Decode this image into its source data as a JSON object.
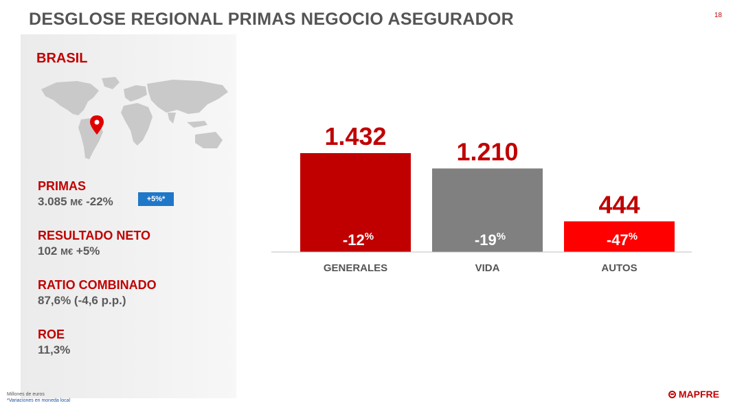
{
  "title": "DESGLOSE REGIONAL PRIMAS NEGOCIO ASEGURADOR",
  "page_number": "18",
  "country": "BRASIL",
  "map_marker_icon": "location-pin-icon",
  "kpis": [
    {
      "label": "PRIMAS",
      "value": "3.085",
      "unit": "M€",
      "change": "-22%",
      "badge": "+5%*"
    },
    {
      "label": "RESULTADO NETO",
      "value": "102",
      "unit": "M€",
      "change": "+5%"
    },
    {
      "label": "RATIO COMBINADO",
      "value": "87,6% (-4,6 p.p.)"
    },
    {
      "label": "ROE",
      "value": "11,3%"
    }
  ],
  "colors": {
    "red": "#c00000",
    "grey": "#7f7f7f",
    "bright_red": "#ff0000",
    "badge": "#1f77c8"
  },
  "chart_data": {
    "type": "bar",
    "categories": [
      "GENERALES",
      "VIDA",
      "AUTOS"
    ],
    "values": [
      1432,
      1210,
      444
    ],
    "value_labels": [
      "1.432",
      "1.210",
      "444"
    ],
    "changes": [
      "-12",
      "-19",
      "-47"
    ],
    "change_suffix": "%",
    "bar_colors": [
      "#c00000",
      "#808080",
      "#ff0000"
    ],
    "value_label_color": "#c00000",
    "ylim": [
      0,
      1432
    ]
  },
  "footnotes": {
    "units": "Millones de euros",
    "note": "*Variaciones en moneda local"
  },
  "logo_text": "MAPFRE"
}
